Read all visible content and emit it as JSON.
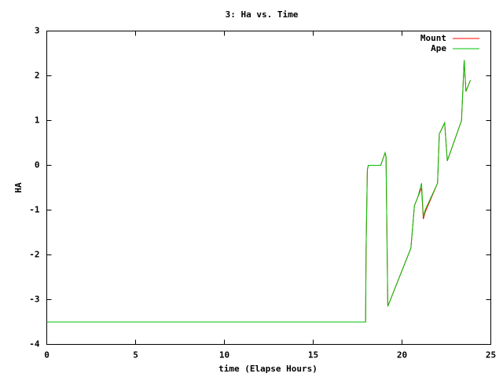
{
  "chart_data": {
    "type": "line",
    "title": "3: Ha vs. Time",
    "xlabel": "time (Elapse Hours)",
    "ylabel": "HA",
    "x": [
      0,
      17.95,
      17.98,
      18.05,
      18.1,
      18.8,
      19.05,
      19.1,
      19.2,
      19.4,
      20.5,
      20.7,
      20.9,
      21.1,
      21.2,
      21.3,
      22.0,
      22.1,
      22.4,
      22.55,
      23.35,
      23.5,
      23.6,
      23.85
    ],
    "series": [
      {
        "name": "Mount",
        "color": "#ff0000",
        "values": [
          -3.5,
          -3.5,
          -1.8,
          -0.1,
          0,
          0,
          0.28,
          0.2,
          -3.15,
          -2.95,
          -1.85,
          -0.9,
          -0.7,
          -0.5,
          -1.2,
          -1.05,
          -0.4,
          0.7,
          0.95,
          0.1,
          1.0,
          2.35,
          1.65,
          1.9
        ]
      },
      {
        "name": "Ape",
        "color": "#00c000",
        "values": [
          -3.5,
          -3.5,
          -1.8,
          -0.1,
          0,
          0,
          0.28,
          0.2,
          -3.15,
          -2.95,
          -1.85,
          -0.9,
          -0.7,
          -0.4,
          -1.15,
          -1.0,
          -0.4,
          0.7,
          0.95,
          0.1,
          1.0,
          2.35,
          1.65,
          1.9
        ]
      }
    ],
    "xlim": [
      0,
      25
    ],
    "xticks": [
      0,
      5,
      10,
      15,
      20,
      25
    ],
    "ylim": [
      -4,
      3
    ],
    "yticks": [
      -4,
      -3,
      -2,
      -1,
      0,
      1,
      2,
      3
    ],
    "legend": "upper right"
  }
}
